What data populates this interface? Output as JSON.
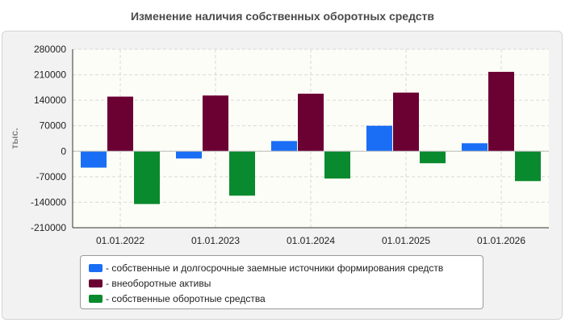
{
  "title": "Изменение наличия собственных оборотных средств",
  "chart_data": {
    "type": "bar",
    "categories": [
      "01.01.2022",
      "01.01.2023",
      "01.01.2024",
      "01.01.2025",
      "01.01.2026"
    ],
    "series": [
      {
        "name": "собственные и долгосрочные заемные источники формирования средств",
        "color": "#1a6ef5",
        "values": [
          -45000,
          -20000,
          28000,
          70000,
          22000
        ]
      },
      {
        "name": "внеоборотные активы",
        "color": "#6b0033",
        "values": [
          150000,
          153000,
          158000,
          161000,
          218000
        ]
      },
      {
        "name": "собственные оборотные средства",
        "color": "#0a8a2e",
        "values": [
          -145000,
          -122000,
          -75000,
          -33000,
          -82000
        ]
      }
    ],
    "ylabel": "тыс.",
    "ylim": [
      -210000,
      280000
    ],
    "yticks": [
      280000,
      210000,
      140000,
      70000,
      0,
      -70000,
      -140000,
      -210000
    ],
    "ytick_labels": [
      "280000",
      "210000",
      "140000",
      "70000",
      "0",
      "-70000",
      "-140000",
      "-210000"
    ],
    "grid": true,
    "legend": "bottom"
  },
  "legend": {
    "items": [
      {
        "label": "- собственные и долгосрочные заемные источники формирования средств",
        "color": "#1a6ef5"
      },
      {
        "label": "- внеоборотные активы",
        "color": "#6b0033"
      },
      {
        "label": "- собственные оборотные средства",
        "color": "#0a8a2e"
      }
    ]
  }
}
